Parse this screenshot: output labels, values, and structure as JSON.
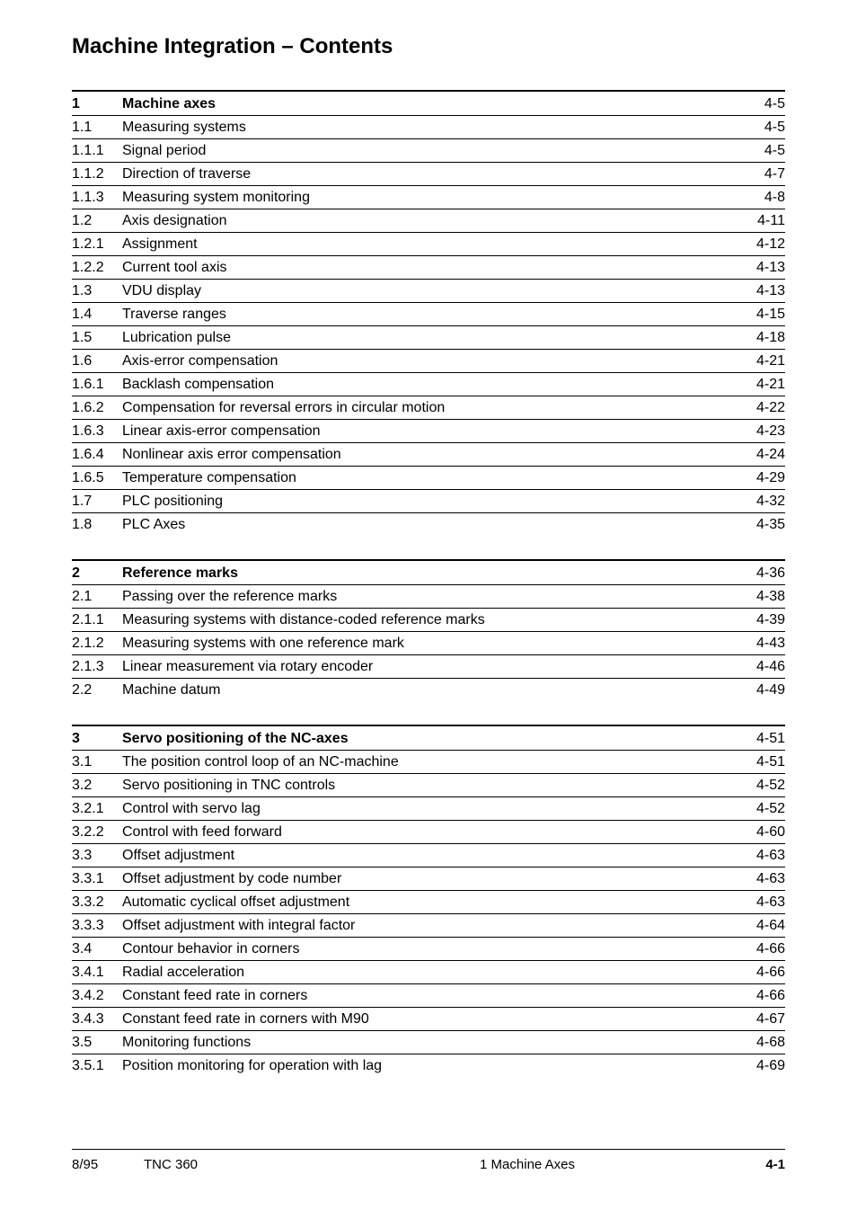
{
  "title": "Machine Integration – Contents",
  "sections": [
    {
      "rows": [
        {
          "num": "1",
          "title": "Machine axes",
          "page": "4-5",
          "head": true
        },
        {
          "num": "1.1",
          "title": "Measuring systems",
          "page": "4-5"
        },
        {
          "num": "1.1.1",
          "title": "Signal period",
          "page": "4-5"
        },
        {
          "num": "1.1.2",
          "title": "Direction of traverse",
          "page": "4-7"
        },
        {
          "num": "1.1.3",
          "title": "Measuring system monitoring",
          "page": "4-8"
        },
        {
          "num": "1.2",
          "title": "Axis designation",
          "page": "4-11"
        },
        {
          "num": "1.2.1",
          "title": "Assignment",
          "page": "4-12"
        },
        {
          "num": "1.2.2",
          "title": "Current tool axis",
          "page": "4-13"
        },
        {
          "num": "1.3",
          "title": "VDU display",
          "page": "4-13"
        },
        {
          "num": "1.4",
          "title": "Traverse ranges",
          "page": "4-15"
        },
        {
          "num": "1.5",
          "title": "Lubrication pulse",
          "page": "4-18"
        },
        {
          "num": "1.6",
          "title": "Axis-error compensation",
          "page": "4-21"
        },
        {
          "num": "1.6.1",
          "title": "Backlash compensation",
          "page": "4-21"
        },
        {
          "num": "1.6.2",
          "title": "Compensation for reversal errors in circular motion",
          "page": "4-22"
        },
        {
          "num": "1.6.3",
          "title": "Linear axis-error compensation",
          "page": "4-23"
        },
        {
          "num": "1.6.4",
          "title": "Nonlinear axis error compensation",
          "page": "4-24"
        },
        {
          "num": "1.6.5",
          "title": "Temperature compensation",
          "page": "4-29"
        },
        {
          "num": "1.7",
          "title": "PLC positioning",
          "page": "4-32"
        },
        {
          "num": "1.8",
          "title": "PLC Axes",
          "page": "4-35",
          "last": true
        }
      ]
    },
    {
      "rows": [
        {
          "num": "2",
          "title": "Reference marks",
          "page": "4-36",
          "head": true
        },
        {
          "num": "2.1",
          "title": "Passing over the reference marks",
          "page": "4-38"
        },
        {
          "num": "2.1.1",
          "title": "Measuring systems with distance-coded reference marks",
          "page": "4-39"
        },
        {
          "num": "2.1.2",
          "title": "Measuring systems with one reference mark",
          "page": "4-43"
        },
        {
          "num": "2.1.3",
          "title": "Linear measurement via rotary encoder",
          "page": "4-46"
        },
        {
          "num": "2.2",
          "title": "Machine datum",
          "page": "4-49",
          "last": true
        }
      ]
    },
    {
      "rows": [
        {
          "num": "3",
          "title": "Servo positioning of the NC-axes",
          "page": "4-51",
          "head": true
        },
        {
          "num": "3.1",
          "title": "The position control loop of an NC-machine",
          "page": "4-51"
        },
        {
          "num": "3.2",
          "title": "Servo positioning in TNC controls",
          "page": "4-52"
        },
        {
          "num": "3.2.1",
          "title": "Control with servo lag",
          "page": "4-52"
        },
        {
          "num": "3.2.2",
          "title": "Control with feed forward",
          "page": "4-60"
        },
        {
          "num": "3.3",
          "title": "Offset adjustment",
          "page": "4-63"
        },
        {
          "num": "3.3.1",
          "title": "Offset adjustment by code number",
          "page": "4-63"
        },
        {
          "num": "3.3.2",
          "title": "Automatic cyclical offset adjustment",
          "page": "4-63"
        },
        {
          "num": "3.3.3",
          "title": "Offset adjustment with integral factor",
          "page": "4-64"
        },
        {
          "num": "3.4",
          "title": "Contour behavior in corners",
          "page": "4-66"
        },
        {
          "num": "3.4.1",
          "title": "Radial acceleration",
          "page": "4-66"
        },
        {
          "num": "3.4.2",
          "title": "Constant feed rate in corners",
          "page": "4-66"
        },
        {
          "num": "3.4.3",
          "title": "Constant feed rate in corners with M90",
          "page": "4-67"
        },
        {
          "num": "3.5",
          "title": "Monitoring functions",
          "page": "4-68"
        },
        {
          "num": "3.5.1",
          "title": "Position monitoring for operation with lag",
          "page": "4-69",
          "last": true
        }
      ]
    }
  ],
  "footer": {
    "date": "8/95",
    "model": "TNC 360",
    "chapter": "1  Machine Axes",
    "pageno": "4-1"
  }
}
